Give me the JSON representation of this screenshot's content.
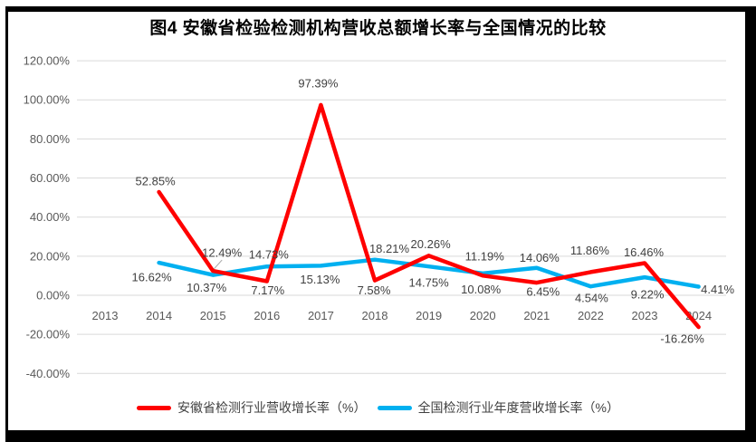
{
  "figure": {
    "title": "图4 安徽省检验检测机构营收总额增长率与全国情况的比较",
    "border_color": "#000000",
    "background": "#ffffff"
  },
  "chart_data": {
    "type": "line",
    "title": "图4 安徽省检验检测机构营收总额增长率与全国情况的比较",
    "categories": [
      "2013",
      "2014",
      "2015",
      "2016",
      "2017",
      "2018",
      "2019",
      "2020",
      "2021",
      "2022",
      "2023",
      "2024"
    ],
    "series": [
      {
        "name": "安徽省检测行业营收增长率（%）",
        "color": "#FF0000",
        "values": [
          null,
          52.85,
          12.49,
          7.17,
          97.39,
          7.58,
          20.26,
          10.08,
          6.45,
          11.86,
          16.46,
          -16.26
        ],
        "label_offsets": [
          null,
          [
            -4,
            -12
          ],
          [
            10,
            -20
          ],
          [
            1,
            10
          ],
          [
            -3,
            -24
          ],
          [
            -1,
            11
          ],
          [
            2,
            -13
          ],
          [
            -2,
            15
          ],
          [
            7,
            10
          ],
          [
            -1,
            -24
          ],
          [
            -1,
            -12
          ],
          [
            -18,
            13
          ]
        ]
      },
      {
        "name": "全国检测行业年度营收增长率（%）",
        "color": "#00B0F0",
        "values": [
          null,
          16.62,
          10.37,
          14.73,
          15.13,
          18.21,
          14.75,
          11.19,
          14.06,
          4.54,
          9.22,
          4.41
        ],
        "label_offsets": [
          null,
          [
            -8,
            16
          ],
          [
            -7,
            14
          ],
          [
            2,
            -13
          ],
          [
            -1,
            15
          ],
          [
            16,
            -12
          ],
          [
            0,
            18
          ],
          [
            2,
            -19
          ],
          [
            3,
            -11
          ],
          [
            1,
            13
          ],
          [
            3,
            19
          ],
          [
            21,
            3
          ]
        ]
      }
    ],
    "ylim": [
      -40,
      120
    ],
    "ytick_step": 20,
    "ytick_labels": [
      "-40.00%",
      "-20.00%",
      "0.00%",
      "20.00%",
      "40.00%",
      "60.00%",
      "80.00%",
      "100.00%",
      "120.00%"
    ],
    "grid": true,
    "legend_position": "bottom",
    "gridline_color": "#D9D9D9",
    "axis_label_color": "#595959",
    "data_label_color": "#404040",
    "leader": {
      "series": 0,
      "index": 2,
      "color": "#A6A6A6"
    }
  }
}
